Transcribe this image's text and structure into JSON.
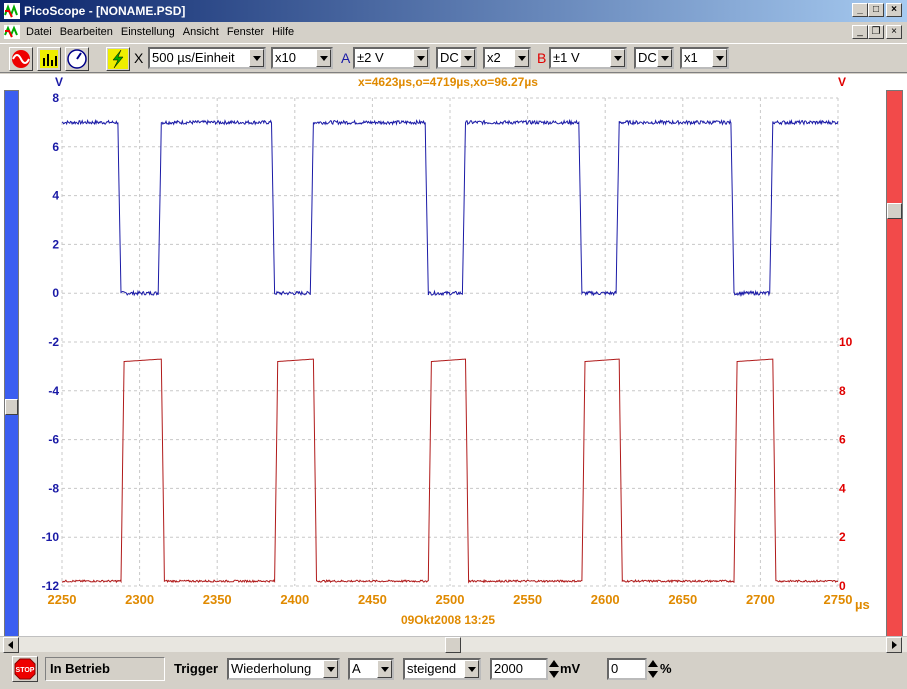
{
  "window": {
    "title": "PicoScope - [NONAME.PSD]"
  },
  "menu": [
    "Datei",
    "Bearbeiten",
    "Einstellung",
    "Ansicht",
    "Fenster",
    "Hilfe"
  ],
  "toolbar": {
    "x_label": "X",
    "timebase": "500 µs/Einheit",
    "zoom": "x10",
    "ch_a_label": "A",
    "ch_a_range": "±2 V",
    "ch_a_coupling": "DC",
    "ch_a_mult": "x2",
    "ch_b_label": "B",
    "ch_b_range": "±1 V",
    "ch_b_coupling": "DC",
    "ch_b_mult": "x1"
  },
  "scope": {
    "left_unit": "V",
    "right_unit": "V",
    "cursor_readout": "x=4623µs,o=4719µs,xo=96.27µs",
    "x_unit": "µs",
    "date": "09Okt2008  13:25",
    "colors": {
      "channel_a": "#1a1aa6",
      "channel_b": "#b01a1a",
      "x_axis_text": "#e08a00",
      "right_text": "#e00000"
    }
  },
  "chart_data": {
    "type": "line",
    "x_ticks": [
      "2250",
      "2300",
      "2350",
      "2400",
      "2450",
      "2500",
      "2550",
      "2600",
      "2650",
      "2700",
      "2750"
    ],
    "left_ticks": [
      "8",
      "6",
      "4",
      "2",
      "0",
      "-2",
      "-4",
      "-6",
      "-8",
      "-10",
      "-12"
    ],
    "right_ticks": [
      "10",
      "8",
      "6",
      "4",
      "2",
      "0"
    ],
    "xlim": [
      2250,
      2750
    ],
    "ylim_left": [
      -12,
      8
    ],
    "ylim_right": [
      0,
      10
    ],
    "series": [
      {
        "axis": "left",
        "high": 7.0,
        "low": -0.1,
        "points": [
          [
            2250,
            7.0
          ],
          [
            2286,
            7.0
          ],
          [
            2288,
            0
          ],
          [
            2312,
            0
          ],
          [
            2314,
            7.0
          ],
          [
            2385,
            7.0
          ],
          [
            2387,
            0
          ],
          [
            2410,
            0
          ],
          [
            2412,
            7.0
          ],
          [
            2484,
            7.0
          ],
          [
            2486,
            0
          ],
          [
            2508,
            0
          ],
          [
            2510,
            7.0
          ],
          [
            2583,
            7.0
          ],
          [
            2585,
            0
          ],
          [
            2607,
            0
          ],
          [
            2609,
            7.0
          ],
          [
            2681,
            7.0
          ],
          [
            2683,
            0
          ],
          [
            2706,
            0
          ],
          [
            2708,
            7.0
          ],
          [
            2750,
            7.0
          ]
        ]
      },
      {
        "axis": "right",
        "high": 9.3,
        "low": 0.2,
        "points": [
          [
            2250,
            0.2
          ],
          [
            2288,
            0.2
          ],
          [
            2290,
            9.2
          ],
          [
            2314,
            9.3
          ],
          [
            2316,
            0.2
          ],
          [
            2387,
            0.2
          ],
          [
            2389,
            9.2
          ],
          [
            2412,
            9.3
          ],
          [
            2414,
            0.2
          ],
          [
            2486,
            0.2
          ],
          [
            2488,
            9.2
          ],
          [
            2510,
            9.3
          ],
          [
            2512,
            0.2
          ],
          [
            2585,
            0.2
          ],
          [
            2587,
            9.2
          ],
          [
            2609,
            9.3
          ],
          [
            2611,
            0.2
          ],
          [
            2683,
            0.2
          ],
          [
            2685,
            9.2
          ],
          [
            2708,
            9.3
          ],
          [
            2710,
            0.2
          ],
          [
            2750,
            0.2
          ]
        ]
      }
    ]
  },
  "statusbar": {
    "status": "In Betrieb",
    "trigger_label": "Trigger",
    "trigger_mode": "Wiederholung",
    "trigger_channel": "A",
    "trigger_edge": "steigend",
    "trigger_level": "2000",
    "level_unit": "mV",
    "pretrigger": "0",
    "pretrigger_unit": "%",
    "stop_label": "STOP"
  }
}
